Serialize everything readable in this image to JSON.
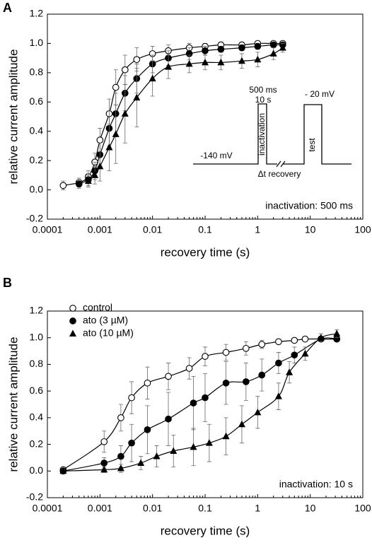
{
  "chart_data": [
    {
      "type": "scatter",
      "panel_label": "A",
      "xlabel": "recovery time (s)",
      "ylabel": "relative current amplitude",
      "xscale": "log",
      "xlim": [
        0.0001,
        100
      ],
      "xticks": [
        0.0001,
        0.001,
        0.01,
        0.1,
        1,
        10,
        100
      ],
      "ylim": [
        -0.2,
        1.2
      ],
      "yticks": [
        {
          "value": -0.2,
          "label": "-0.2"
        },
        {
          "value": 0,
          "label": "0.0"
        },
        {
          "value": 0.2,
          "label": "0.2"
        },
        {
          "value": 0.4,
          "label": "0.4"
        },
        {
          "value": 0.6,
          "label": "0.6"
        },
        {
          "value": 0.8,
          "label": "0.8"
        },
        {
          "value": 1,
          "label": "1.0"
        },
        {
          "value": 1.2,
          "label": "1.2"
        }
      ],
      "annotations": [
        "inactivation: 500 ms"
      ],
      "protocol_labels": [
        "500 ms",
        "10 s",
        "inactivation",
        "-140 mV",
        "Δt recovery",
        "- 20 mV",
        "test"
      ],
      "series": [
        {
          "marker": "circle-open",
          "color": "#000000",
          "x": [
            0.0002,
            0.0004,
            0.0006,
            0.0008,
            0.001,
            0.0015,
            0.002,
            0.003,
            0.005,
            0.01,
            0.02,
            0.05,
            0.1,
            0.2,
            0.5,
            1,
            2,
            3
          ],
          "values": [
            0.03,
            0.05,
            0.09,
            0.19,
            0.34,
            0.52,
            0.7,
            0.82,
            0.89,
            0.93,
            0.95,
            0.97,
            0.98,
            0.99,
            0.99,
            1.0,
            1.0,
            1.0
          ],
          "errors": [
            0.03,
            0.03,
            0.04,
            0.06,
            0.08,
            0.1,
            0.12,
            0.1,
            0.08,
            0.05,
            0.04,
            0.03,
            0.02,
            0.02,
            0.02,
            0.01,
            0.01,
            0.01
          ]
        },
        {
          "marker": "circle",
          "color": "#000000",
          "x": [
            0.0004,
            0.0006,
            0.0008,
            0.001,
            0.0015,
            0.002,
            0.003,
            0.005,
            0.01,
            0.02,
            0.05,
            0.1,
            0.2,
            0.5,
            1,
            2,
            3
          ],
          "values": [
            0.04,
            0.07,
            0.13,
            0.24,
            0.42,
            0.52,
            0.66,
            0.76,
            0.86,
            0.9,
            0.93,
            0.95,
            0.96,
            0.97,
            0.98,
            0.99,
            0.99
          ],
          "errors": [
            0.03,
            0.04,
            0.06,
            0.08,
            0.12,
            0.14,
            0.12,
            0.1,
            0.06,
            0.05,
            0.04,
            0.03,
            0.02,
            0.02,
            0.02,
            0.01,
            0.01
          ]
        },
        {
          "marker": "triangle",
          "color": "#000000",
          "x": [
            0.0006,
            0.0008,
            0.001,
            0.0015,
            0.002,
            0.003,
            0.005,
            0.01,
            0.02,
            0.05,
            0.1,
            0.2,
            0.5,
            1,
            2,
            3
          ],
          "values": [
            0.06,
            0.1,
            0.16,
            0.29,
            0.38,
            0.52,
            0.63,
            0.76,
            0.84,
            0.86,
            0.87,
            0.87,
            0.88,
            0.89,
            0.93,
            0.97
          ],
          "errors": [
            0.04,
            0.06,
            0.1,
            0.16,
            0.2,
            0.2,
            0.2,
            0.12,
            0.08,
            0.06,
            0.05,
            0.05,
            0.05,
            0.05,
            0.04,
            0.03
          ]
        }
      ]
    },
    {
      "type": "scatter",
      "panel_label": "B",
      "xlabel": "recovery time (s)",
      "ylabel": "relative current amplitude",
      "xscale": "log",
      "xlim": [
        0.0001,
        100
      ],
      "xticks": [
        0.0001,
        0.001,
        0.01,
        0.1,
        1,
        10,
        100
      ],
      "ylim": [
        -0.2,
        1.2
      ],
      "yticks": [
        {
          "value": -0.2,
          "label": "-0.2"
        },
        {
          "value": 0,
          "label": "0.0"
        },
        {
          "value": 0.2,
          "label": "0.2"
        },
        {
          "value": 0.4,
          "label": "0.4"
        },
        {
          "value": 0.6,
          "label": "0.6"
        },
        {
          "value": 0.8,
          "label": "0.8"
        },
        {
          "value": 1,
          "label": "1.0"
        },
        {
          "value": 1.2,
          "label": "1.2"
        }
      ],
      "annotations": [
        "inactivation: 10 s"
      ],
      "legend": "upper left",
      "series": [
        {
          "name": "control",
          "marker": "circle-open",
          "color": "#000000",
          "x": [
            0.0002,
            0.0012,
            0.0025,
            0.004,
            0.008,
            0.02,
            0.05,
            0.1,
            0.25,
            0.6,
            1.2,
            2.5,
            5,
            8,
            16,
            32
          ],
          "values": [
            0.01,
            0.22,
            0.4,
            0.55,
            0.66,
            0.71,
            0.77,
            0.86,
            0.89,
            0.92,
            0.95,
            0.97,
            0.98,
            0.99,
            0.99,
            0.99
          ],
          "errors": [
            0.01,
            0.08,
            0.1,
            0.12,
            0.12,
            0.1,
            0.08,
            0.07,
            0.06,
            0.05,
            0.03,
            0.02,
            0.01,
            0.01,
            0.01,
            0.01
          ]
        },
        {
          "name": "ato (3 µM)",
          "marker": "circle",
          "color": "#000000",
          "x": [
            0.0002,
            0.0012,
            0.0025,
            0.004,
            0.008,
            0.02,
            0.06,
            0.1,
            0.25,
            0.6,
            1.2,
            2.5,
            5,
            16,
            32
          ],
          "values": [
            0.0,
            0.06,
            0.11,
            0.21,
            0.31,
            0.39,
            0.51,
            0.55,
            0.66,
            0.67,
            0.72,
            0.81,
            0.87,
            0.99,
            0.99
          ],
          "errors": [
            0.01,
            0.04,
            0.08,
            0.14,
            0.18,
            0.2,
            0.2,
            0.18,
            0.16,
            0.14,
            0.12,
            0.08,
            0.06,
            0.02,
            0.02
          ]
        },
        {
          "name": "ato (10 µM)",
          "marker": "triangle",
          "color": "#000000",
          "x": [
            0.0002,
            0.0012,
            0.0025,
            0.006,
            0.012,
            0.025,
            0.06,
            0.12,
            0.25,
            0.5,
            1,
            2.5,
            4,
            8,
            16,
            32
          ],
          "values": [
            0.0,
            0.01,
            0.02,
            0.06,
            0.11,
            0.15,
            0.18,
            0.21,
            0.26,
            0.35,
            0.44,
            0.56,
            0.74,
            0.88,
            1.0,
            1.03
          ],
          "errors": [
            0.01,
            0.02,
            0.03,
            0.05,
            0.08,
            0.12,
            0.14,
            0.14,
            0.14,
            0.14,
            0.12,
            0.1,
            0.08,
            0.05,
            0.03,
            0.03
          ]
        }
      ]
    }
  ]
}
